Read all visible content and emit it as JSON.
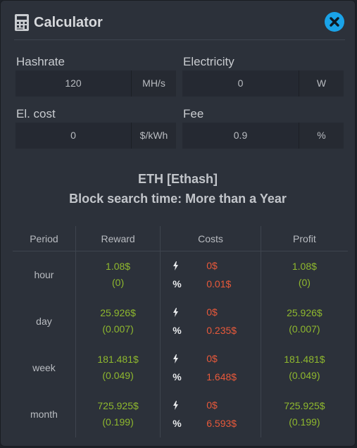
{
  "header": {
    "title": "Calculator",
    "close_icon": "close-icon"
  },
  "fields": {
    "hashrate": {
      "label": "Hashrate",
      "value": "120",
      "unit": "MH/s"
    },
    "electricity": {
      "label": "Electricity",
      "value": "0",
      "unit": "W"
    },
    "el_cost": {
      "label": "El. cost",
      "value": "0",
      "unit": "$/kWh"
    },
    "fee": {
      "label": "Fee",
      "value": "0.9",
      "unit": "%"
    }
  },
  "summary": {
    "coin": "ETH [Ethash]",
    "block_search": "Block search time: More than a Year"
  },
  "table": {
    "headers": [
      "Period",
      "Reward",
      "Costs",
      "Profit"
    ],
    "rows": [
      {
        "period": "hour",
        "reward": "1.08$",
        "reward_coin": "(0)",
        "cost_power": "0$",
        "cost_fee": "0.01$",
        "profit": "1.08$",
        "profit_coin": "(0)"
      },
      {
        "period": "day",
        "reward": "25.926$",
        "reward_coin": "(0.007)",
        "cost_power": "0$",
        "cost_fee": "0.235$",
        "profit": "25.926$",
        "profit_coin": "(0.007)"
      },
      {
        "period": "week",
        "reward": "181.481$",
        "reward_coin": "(0.049)",
        "cost_power": "0$",
        "cost_fee": "1.648$",
        "profit": "181.481$",
        "profit_coin": "(0.049)"
      },
      {
        "period": "month",
        "reward": "725.925$",
        "reward_coin": "(0.199)",
        "cost_power": "0$",
        "cost_fee": "6.593$",
        "profit": "725.925$",
        "profit_coin": "(0.199)"
      }
    ],
    "power_icon": "bolt-icon",
    "fee_icon": "percent-icon",
    "fee_symbol": "%"
  },
  "colors": {
    "accent": "#1aa3e8",
    "positive": "#8fb82e",
    "negative": "#e8593a",
    "background": "#2c313a"
  }
}
